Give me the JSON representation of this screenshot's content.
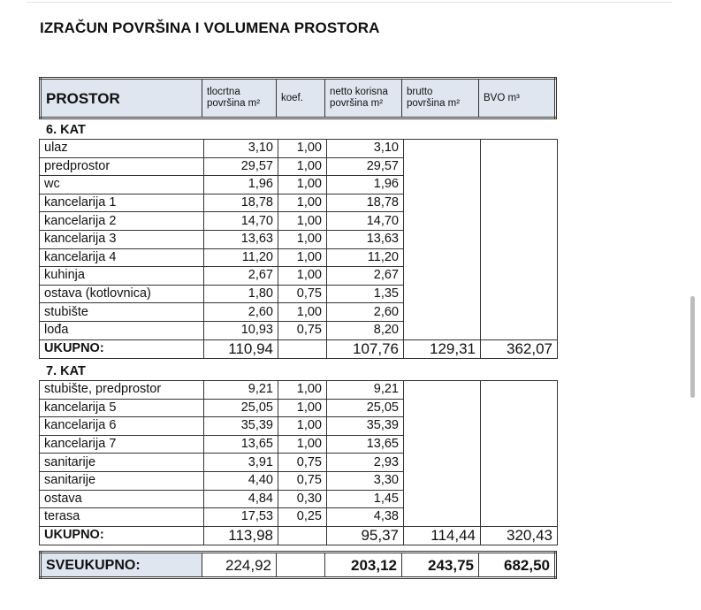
{
  "title": "IZRAČUN POVRŠINA I VOLUMENA PROSTORA",
  "header": {
    "prostor": "PROSTOR",
    "tlocrtna": "tlocrtna površina m²",
    "koef": "koef.",
    "netto": "netto korisna površina m²",
    "brutto": "brutto površina m²",
    "bvo": "BVO m³"
  },
  "sections": [
    {
      "title": "6. KAT",
      "rows": [
        [
          "ulaz",
          "3,10",
          "1,00",
          "3,10"
        ],
        [
          "predprostor",
          "29,57",
          "1,00",
          "29,57"
        ],
        [
          "wc",
          "1,96",
          "1,00",
          "1,96"
        ],
        [
          "kancelarija 1",
          "18,78",
          "1,00",
          "18,78"
        ],
        [
          "kancelarija 2",
          "14,70",
          "1,00",
          "14,70"
        ],
        [
          "kancelarija 3",
          "13,63",
          "1,00",
          "13,63"
        ],
        [
          "kancelarija 4",
          "11,20",
          "1,00",
          "11,20"
        ],
        [
          "kuhinja",
          "2,67",
          "1,00",
          "2,67"
        ],
        [
          "ostava (kotlovnica)",
          "1,80",
          "0,75",
          "1,35"
        ],
        [
          "stubište",
          "2,60",
          "1,00",
          "2,60"
        ],
        [
          "lođa",
          "10,93",
          "0,75",
          "8,20"
        ]
      ],
      "total": {
        "label": "UKUPNO:",
        "tlocrtna": "110,94",
        "netto": "107,76",
        "brutto": "129,31",
        "bvo": "362,07"
      }
    },
    {
      "title": "7. KAT",
      "rows": [
        [
          "stubište, predprostor",
          "9,21",
          "1,00",
          "9,21"
        ],
        [
          "kancelarija 5",
          "25,05",
          "1,00",
          "25,05"
        ],
        [
          "kancelarija 6",
          "35,39",
          "1,00",
          "35,39"
        ],
        [
          "kancelarija 7",
          "13,65",
          "1,00",
          "13,65"
        ],
        [
          "sanitarije",
          "3,91",
          "0,75",
          "2,93"
        ],
        [
          "sanitarije",
          "4,40",
          "0,75",
          "3,30"
        ],
        [
          "ostava",
          "4,84",
          "0,30",
          "1,45"
        ],
        [
          "terasa",
          "17,53",
          "0,25",
          "4,38"
        ]
      ],
      "total": {
        "label": "UKUPNO:",
        "tlocrtna": "113,98",
        "netto": "95,37",
        "brutto": "114,44",
        "bvo": "320,43"
      }
    }
  ],
  "grand": {
    "label": "SVEUKUPNO:",
    "tlocrtna": "224,92",
    "netto": "203,12",
    "brutto": "243,75",
    "bvo": "682,50"
  }
}
